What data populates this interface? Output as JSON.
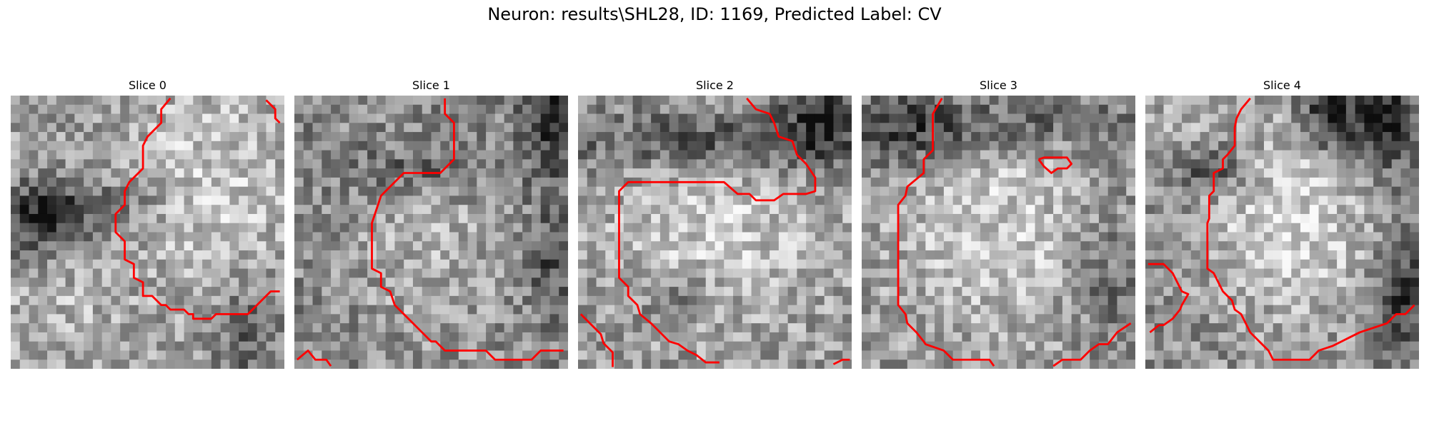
{
  "figure": {
    "title": "Neuron: results\\SHL28, ID: 1169, Predicted Label: CV"
  },
  "contour_color": "#ff0000",
  "slices": [
    {
      "title": "Slice 0"
    },
    {
      "title": "Slice 1"
    },
    {
      "title": "Slice 2"
    },
    {
      "title": "Slice 3"
    },
    {
      "title": "Slice 4"
    }
  ]
}
